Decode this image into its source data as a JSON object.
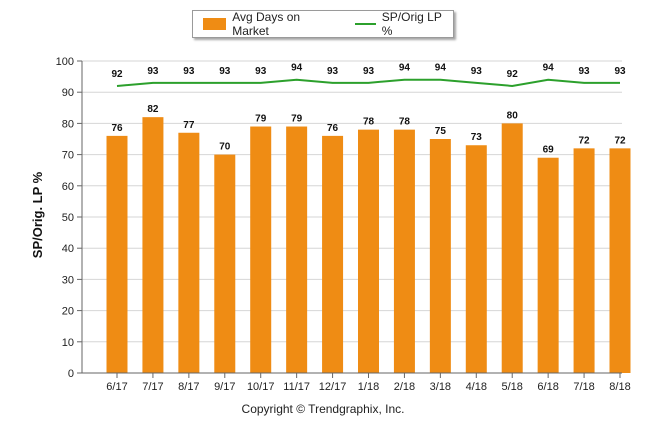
{
  "chart_data": {
    "type": "bar",
    "categories": [
      "6/17",
      "7/17",
      "8/17",
      "9/17",
      "10/17",
      "11/17",
      "12/17",
      "1/18",
      "2/18",
      "3/18",
      "4/18",
      "5/18",
      "6/18",
      "7/18",
      "8/18"
    ],
    "series": [
      {
        "name": "Avg Days on Market",
        "type": "bar",
        "color": "#ef8c14",
        "values": [
          76,
          82,
          77,
          70,
          79,
          79,
          76,
          78,
          78,
          75,
          73,
          80,
          69,
          72,
          72
        ]
      },
      {
        "name": "SP/Orig LP %",
        "type": "line",
        "color": "#2ca02c",
        "values": [
          92,
          93,
          93,
          93,
          93,
          94,
          93,
          93,
          94,
          94,
          93,
          92,
          94,
          93,
          93
        ]
      }
    ],
    "ylabel": "SP/Orig. LP %",
    "yticks": [
      0,
      10,
      20,
      30,
      40,
      50,
      60,
      70,
      80,
      90,
      100
    ],
    "ylim": [
      0,
      100
    ],
    "grid": true,
    "legend_position": "top-center"
  },
  "footer": {
    "copyright": "Copyright © Trendgraphix, Inc."
  }
}
